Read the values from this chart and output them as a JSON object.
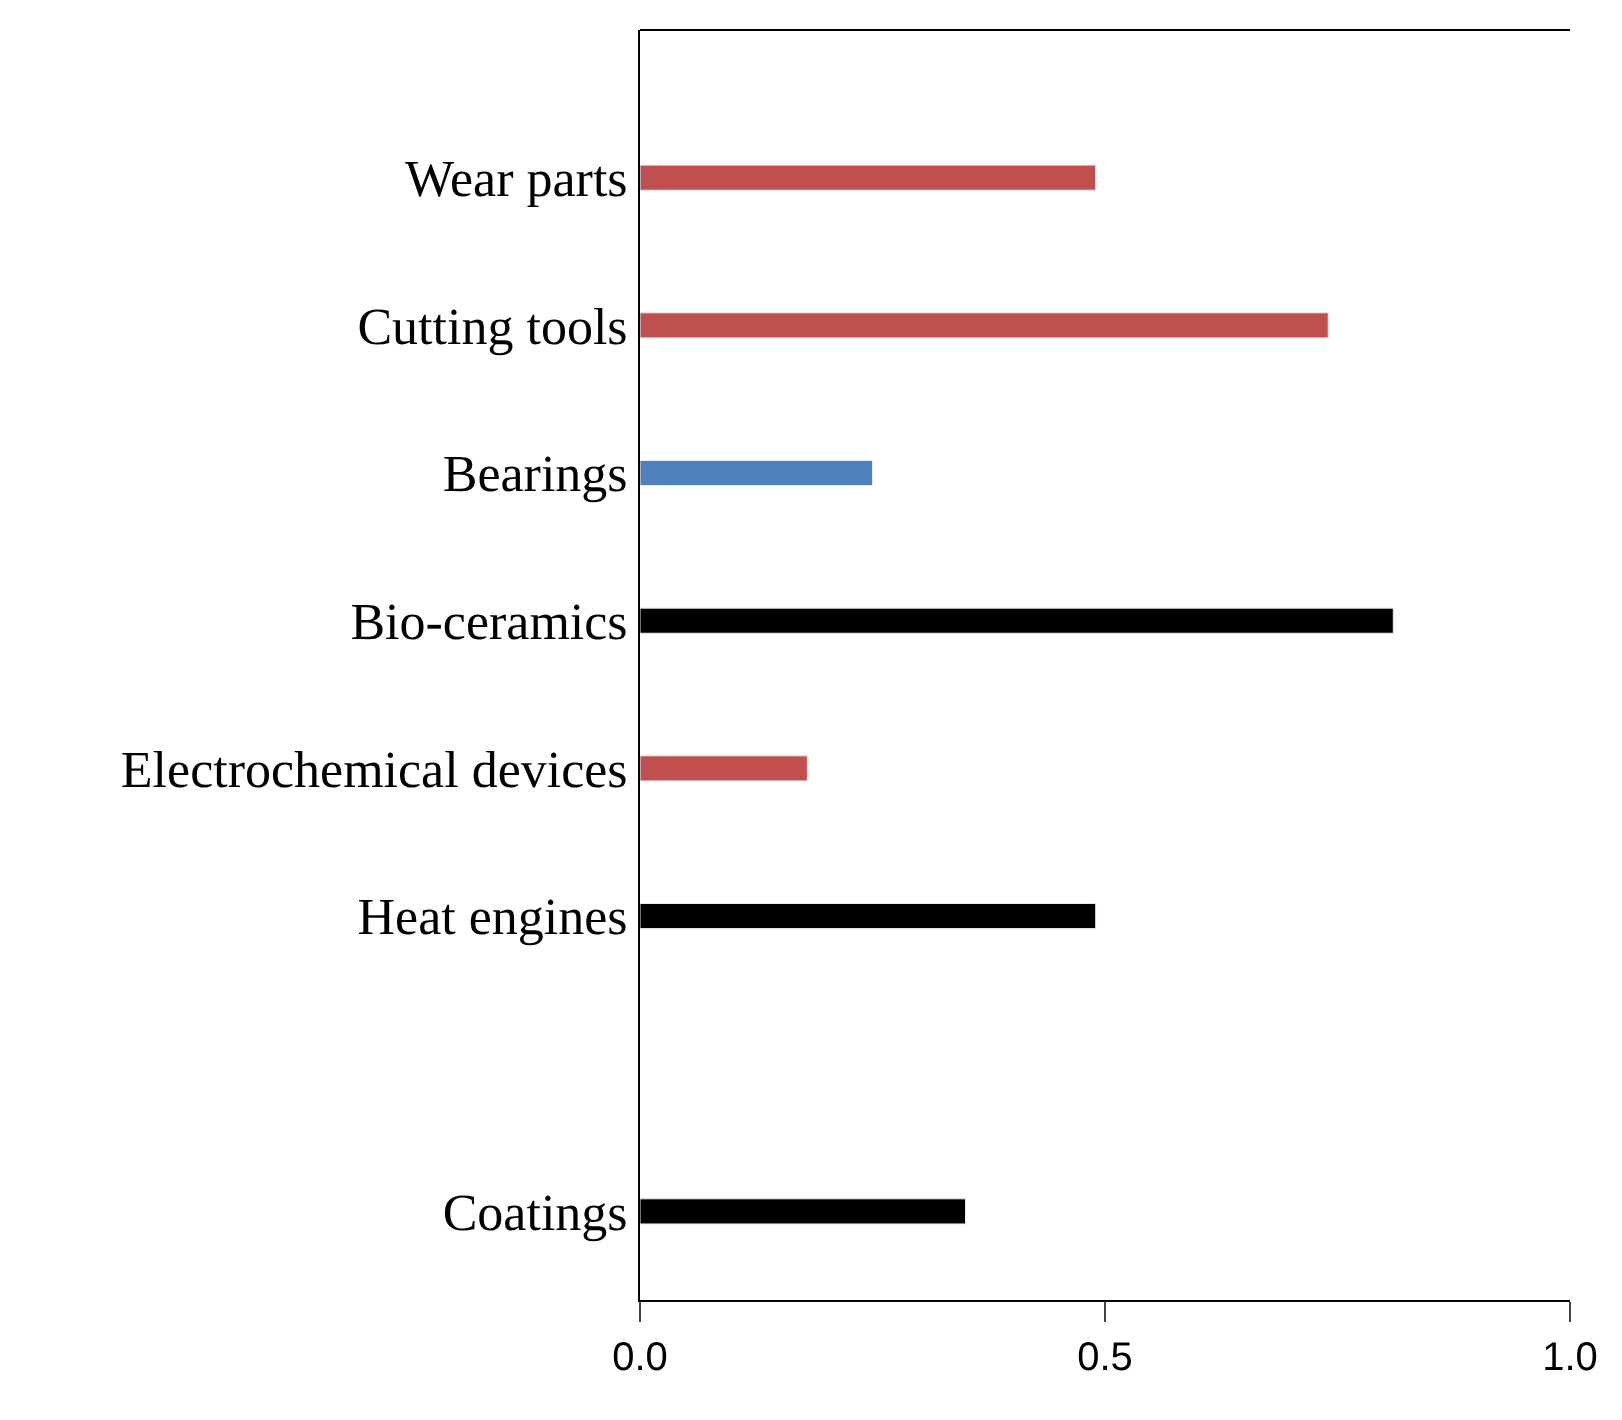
{
  "chart_data": {
    "type": "bar",
    "orientation": "horizontal",
    "categories": [
      "Wear parts",
      "Cutting tools",
      "Bearings",
      "Bio-ceramics",
      "Electrochemical devices",
      "Heat engines",
      null,
      "Coatings"
    ],
    "values": [
      0.49,
      0.74,
      0.25,
      0.81,
      0.18,
      0.49,
      null,
      0.35
    ],
    "colors": [
      "#c0504d",
      "#c0504d",
      "#4f81bd",
      "#000000",
      "#c0504d",
      "#000000",
      "#000000",
      "#000000"
    ],
    "xlim": [
      0,
      1
    ],
    "xticks": [
      {
        "value": 0,
        "label": "0.0"
      },
      0.5,
      {
        "value": 1,
        "label": "1.0"
      }
    ]
  }
}
